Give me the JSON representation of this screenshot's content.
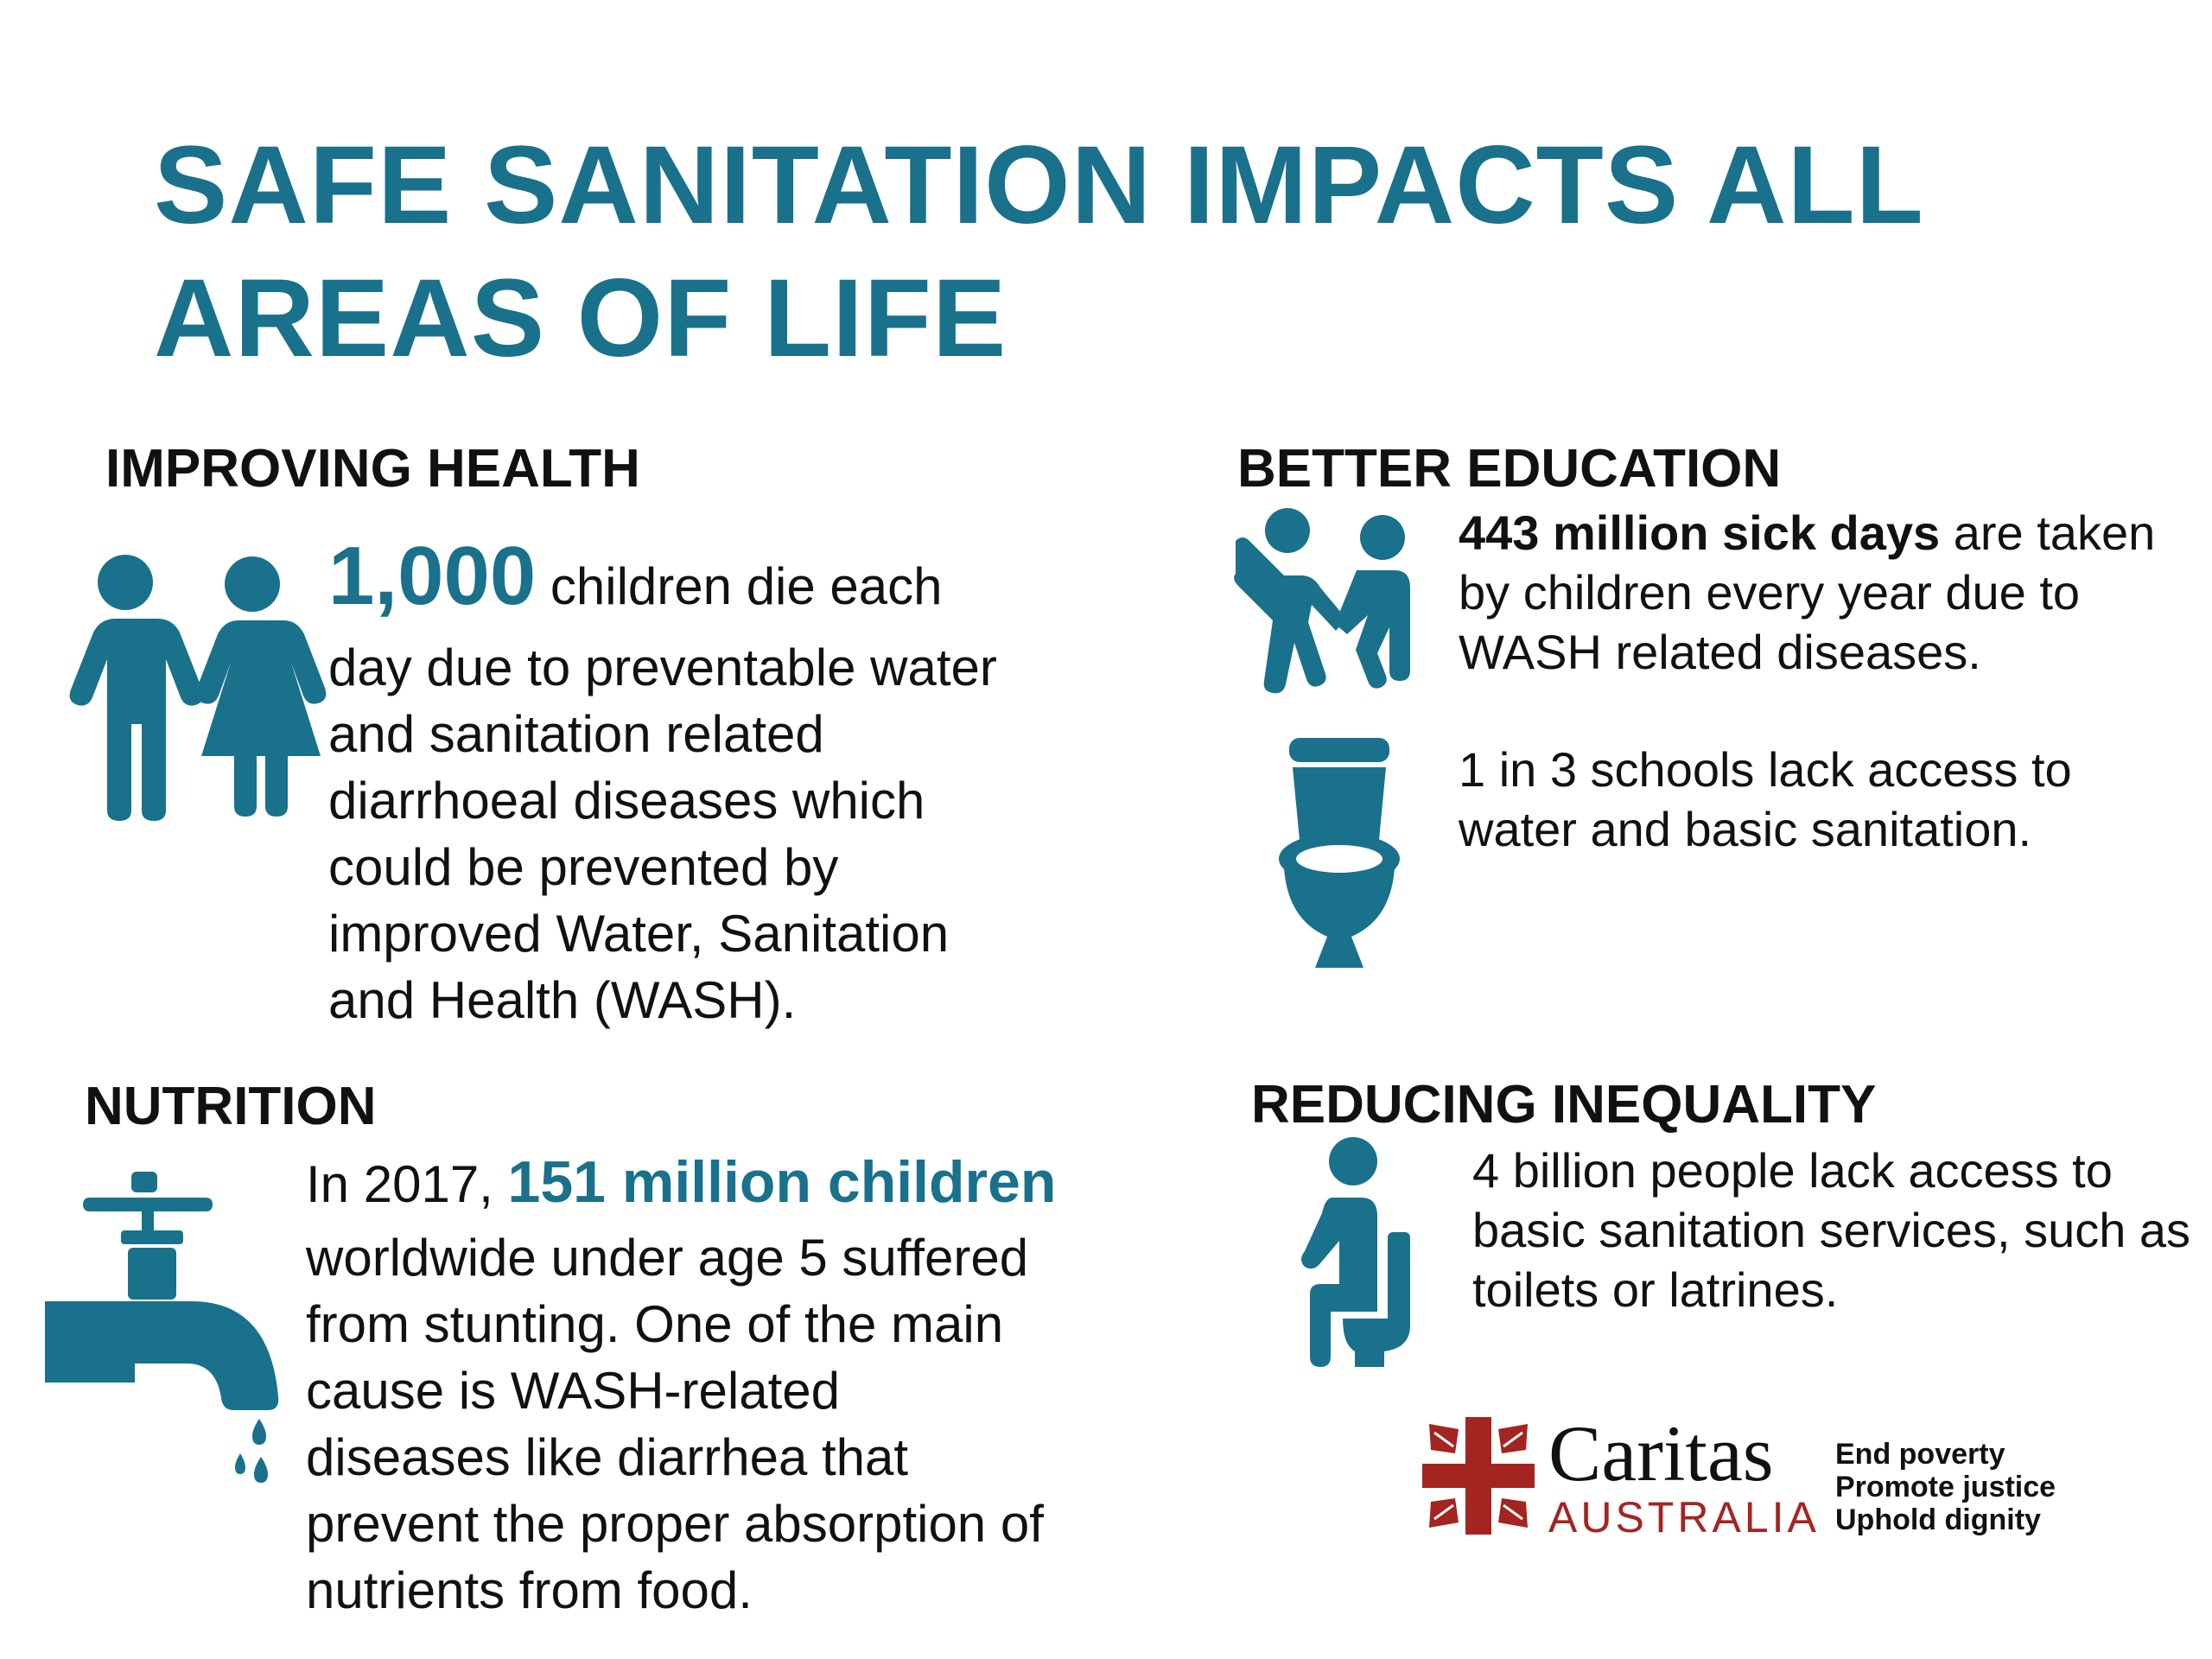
{
  "title": {
    "line1": "SAFE SANITATION IMPACTS ALL",
    "line2": "AREAS OF LIFE"
  },
  "sections": {
    "health": {
      "heading": "IMPROVING HEALTH",
      "stat": "1,000",
      "text_after_stat": " children die each",
      "lines": [
        "day due to preventable water",
        "and sanitation related",
        "diarrhoeal diseases which",
        "could be prevented by",
        "improved Water, Sanitation",
        "and Health (WASH)."
      ],
      "icon": "children-icon"
    },
    "education": {
      "heading": "BETTER EDUCATION",
      "stat_bold": "443 million sick days",
      "stat_rest": " are taken",
      "stat_lines": [
        "by children every year due to",
        "WASH related diseases."
      ],
      "school_lines": [
        "1 in 3 schools lack access to",
        "water and basic sanitation."
      ],
      "icons": [
        "playing-children-icon",
        "toilet-icon"
      ]
    },
    "nutrition": {
      "heading": "NUTRITION",
      "prefix": "In 2017, ",
      "stat": "151 million children",
      "lines": [
        "worldwide under age 5 suffered",
        "from stunting. One of the main",
        "cause is WASH-related",
        "diseases like diarrhea that",
        "prevent the proper absorption of",
        "nutrients from food."
      ],
      "icon": "water-tap-icon"
    },
    "inequality": {
      "heading": "REDUCING INEQUALITY",
      "lines": [
        "4 billion people lack access to",
        "basic sanitation services, such as",
        "toilets or latrines."
      ],
      "icon": "person-on-toilet-icon"
    }
  },
  "branding": {
    "name": "Caritas",
    "country": "AUSTRALIA",
    "taglines": [
      "End poverty",
      "Promote justice",
      "Uphold dignity"
    ],
    "logo_icon": "caritas-cross-logo",
    "brand_color": "#a42421"
  },
  "colors": {
    "accent": "#19718c",
    "text": "#111111"
  }
}
